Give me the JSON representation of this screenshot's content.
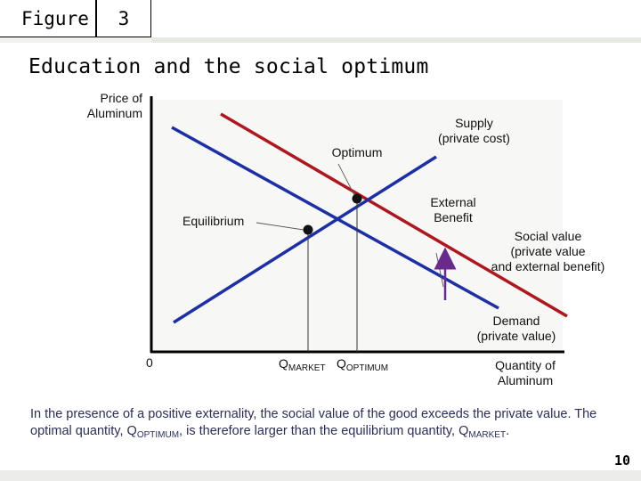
{
  "header": {
    "figure_label": "Figure",
    "figure_number": "3",
    "title": "Education and the social optimum"
  },
  "diagram": {
    "y_axis_label": "Price of\nAluminum",
    "x_axis_label": "Quantity of\nAluminum",
    "origin_label": "0",
    "q_market": {
      "main": "Q",
      "sub": "MARKET"
    },
    "q_optimum": {
      "main": "Q",
      "sub": "OPTIMUM"
    },
    "optimum_label": "Optimum",
    "equilibrium_label": "Equilibrium",
    "supply_label": "Supply\n(private cost)",
    "external_benefit_label": "External\nBenefit",
    "social_value_label": "Social value\n(private value\nand external benefit)",
    "demand_label": "Demand\n(private value)",
    "colors": {
      "social_value_curve": "#b0161e",
      "supply_curve": "#1c2fa6",
      "demand_curve": "#1c2fa6",
      "arrow": "#6a2a8c",
      "axis": "#000000"
    }
  },
  "caption": {
    "part1": "In the presence of a positive externality, the social value of the good exceeds the private value. The optimal quantity, Q",
    "part1_sub": "OPTIMUM",
    "part2": ", is therefore larger than the equilibrium quantity, Q",
    "part2_sub": "MARKET",
    "part3": "."
  },
  "page_number": "10"
}
